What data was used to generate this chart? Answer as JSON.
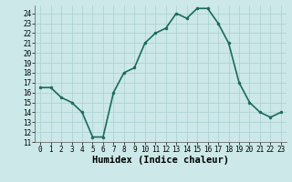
{
  "x": [
    0,
    1,
    2,
    3,
    4,
    5,
    6,
    7,
    8,
    9,
    10,
    11,
    12,
    13,
    14,
    15,
    16,
    17,
    18,
    19,
    20,
    21,
    22,
    23
  ],
  "y": [
    16.5,
    16.5,
    15.5,
    15.0,
    14.0,
    11.5,
    11.5,
    16.0,
    18.0,
    18.5,
    21.0,
    22.0,
    22.5,
    24.0,
    23.5,
    24.5,
    24.5,
    23.0,
    21.0,
    17.0,
    15.0,
    14.0,
    13.5,
    14.0
  ],
  "xlabel": "Humidex (Indice chaleur)",
  "line_color": "#1a6b5a",
  "marker": "o",
  "marker_size": 2.0,
  "bg_color": "#cce8e8",
  "grid_color": "#aacfcf",
  "ylim": [
    11,
    24.8
  ],
  "xlim": [
    -0.5,
    23.5
  ],
  "yticks": [
    11,
    12,
    13,
    14,
    15,
    16,
    17,
    18,
    19,
    20,
    21,
    22,
    23,
    24
  ],
  "xticks": [
    0,
    1,
    2,
    3,
    4,
    5,
    6,
    7,
    8,
    9,
    10,
    11,
    12,
    13,
    14,
    15,
    16,
    17,
    18,
    19,
    20,
    21,
    22,
    23
  ],
  "tick_fontsize": 5.5,
  "xlabel_fontsize": 7.5,
  "line_width": 1.2
}
